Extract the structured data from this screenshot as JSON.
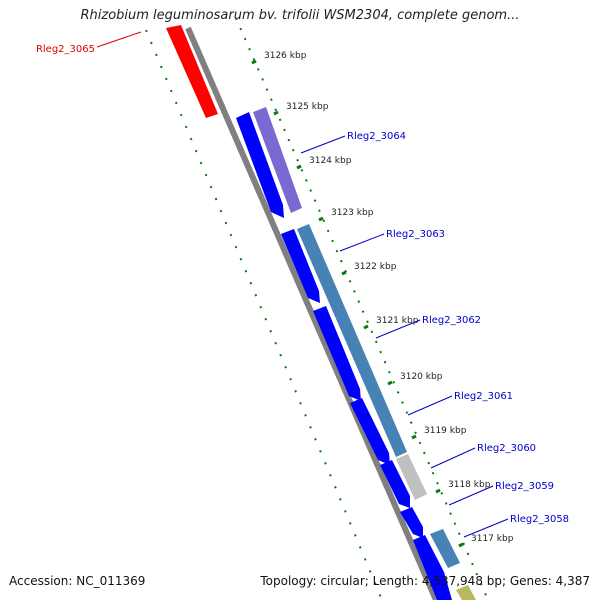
{
  "title": "Rhizobium leguminosarum bv. trifolii WSM2304, complete genom...",
  "footer": {
    "accession": "Accession: NC_011369",
    "summary": "Topology: circular; Length: 4,537,948 bp; Genes: 4,387"
  },
  "colors": {
    "backbone": "#808080",
    "forward_gene": "#ff0000",
    "reverse_gene": "#0000ff",
    "tick": "#0a7a0a",
    "cds_label_blue": "#0000cc",
    "cds_label_red": "#dd0000"
  },
  "ticks": [
    {
      "kbp": 3126,
      "label": "3126 kbp"
    },
    {
      "kbp": 3125,
      "label": "3125 kbp"
    },
    {
      "kbp": 3124,
      "label": "3124 kbp"
    },
    {
      "kbp": 3123,
      "label": "3123 kbp"
    },
    {
      "kbp": 3122,
      "label": "3122 kbp"
    },
    {
      "kbp": 3121,
      "label": "3121 kbp"
    },
    {
      "kbp": 3120,
      "label": "3120 kbp"
    },
    {
      "kbp": 3119,
      "label": "3119 kbp"
    },
    {
      "kbp": 3118,
      "label": "3118 kbp"
    },
    {
      "kbp": 3117,
      "label": "3117 kbp"
    }
  ],
  "gene_labels": [
    {
      "text": "Rleg2_3065",
      "strand": "forward"
    },
    {
      "text": "Rleg2_3064",
      "strand": "reverse"
    },
    {
      "text": "Rleg2_3063",
      "strand": "reverse"
    },
    {
      "text": "Rleg2_3062",
      "strand": "reverse"
    },
    {
      "text": "Rleg2_3061",
      "strand": "reverse"
    },
    {
      "text": "Rleg2_3060",
      "strand": "reverse"
    },
    {
      "text": "Rleg2_3059",
      "strand": "reverse"
    },
    {
      "text": "Rleg2_3058",
      "strand": "reverse"
    }
  ]
}
